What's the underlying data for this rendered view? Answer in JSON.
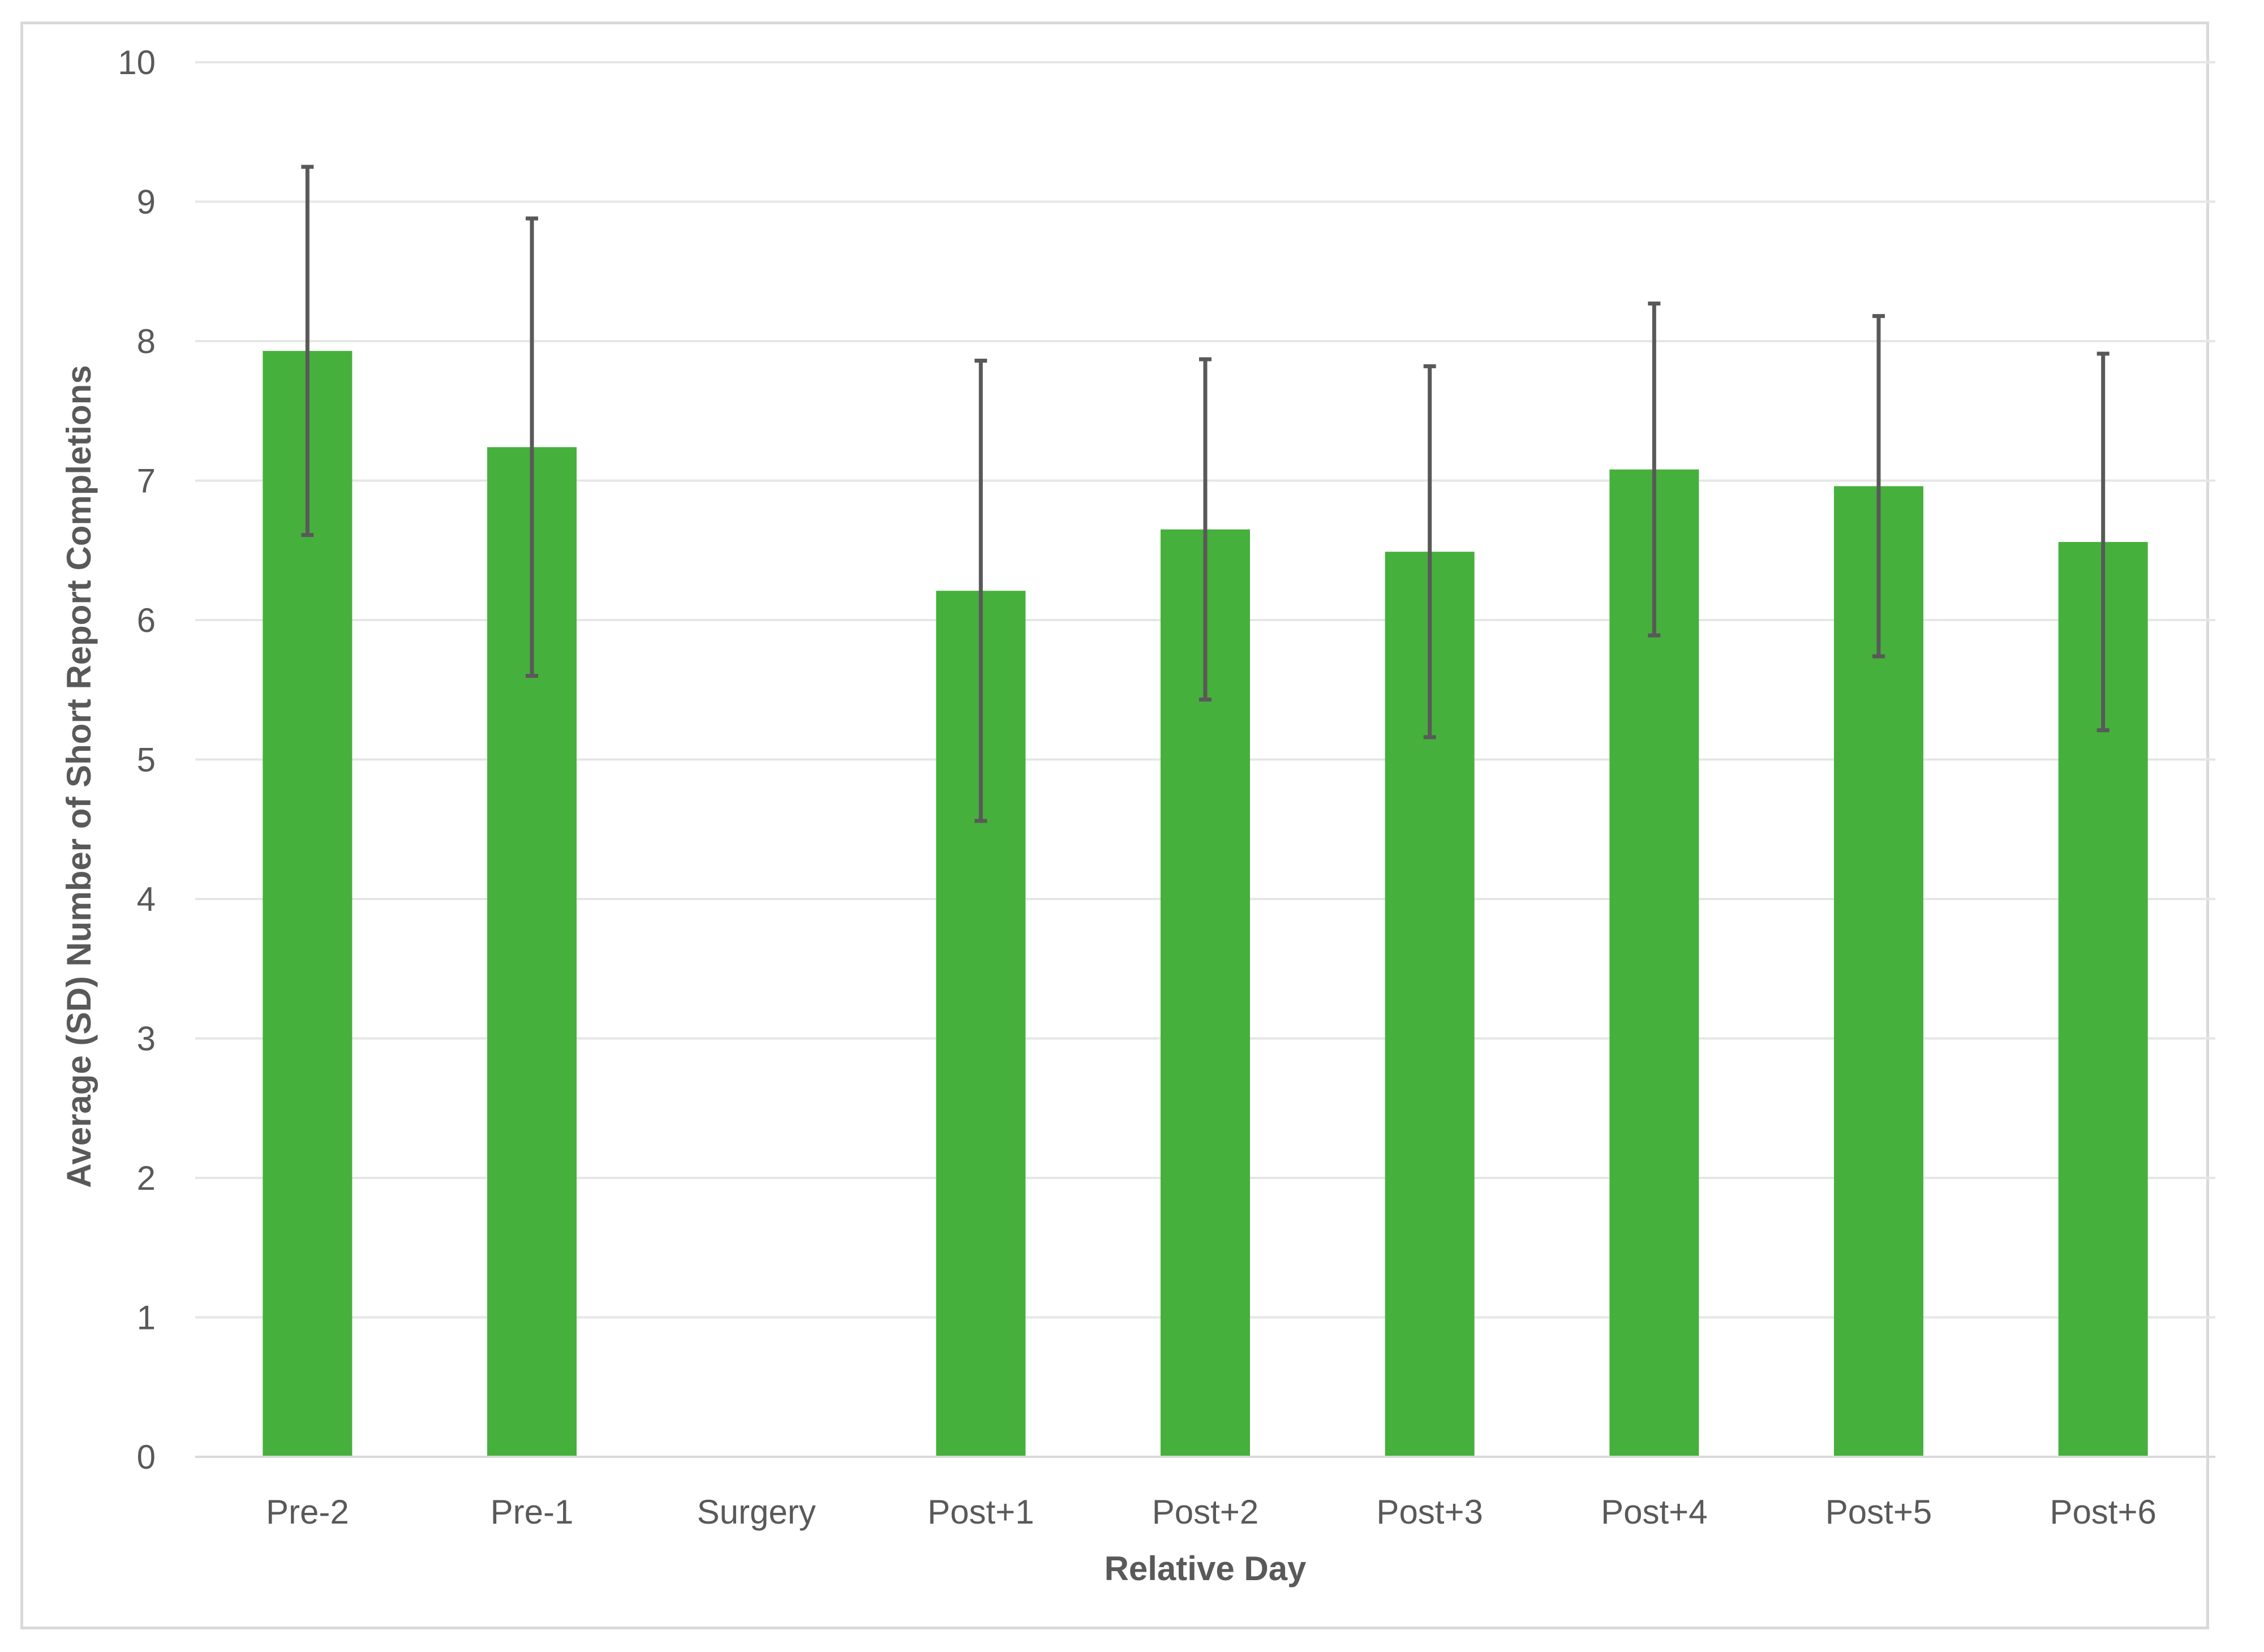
{
  "chart_data": {
    "type": "bar",
    "title": "",
    "xlabel": "Relative Day",
    "ylabel": "Average (SD) Number of Short Report Completions",
    "categories": [
      "Pre-2",
      "Pre-1",
      "Surgery",
      "Post+1",
      "Post+2",
      "Post+3",
      "Post+4",
      "Post+5",
      "Post+6"
    ],
    "series": [
      {
        "values": [
          7.93,
          7.24,
          null,
          6.21,
          6.65,
          6.49,
          7.08,
          6.96,
          6.56
        ],
        "error": [
          1.32,
          1.64,
          null,
          1.65,
          1.22,
          1.33,
          1.19,
          1.22,
          1.35
        ],
        "color": "#46b03c"
      }
    ],
    "ylim": [
      0,
      10
    ],
    "yticks": [
      0,
      1,
      2,
      3,
      4,
      5,
      6,
      7,
      8,
      9,
      10
    ],
    "grid": true,
    "gridColor": "#e6e6e6",
    "errorBarColor": "#595959",
    "textColor": "#595959",
    "legend": "none"
  }
}
